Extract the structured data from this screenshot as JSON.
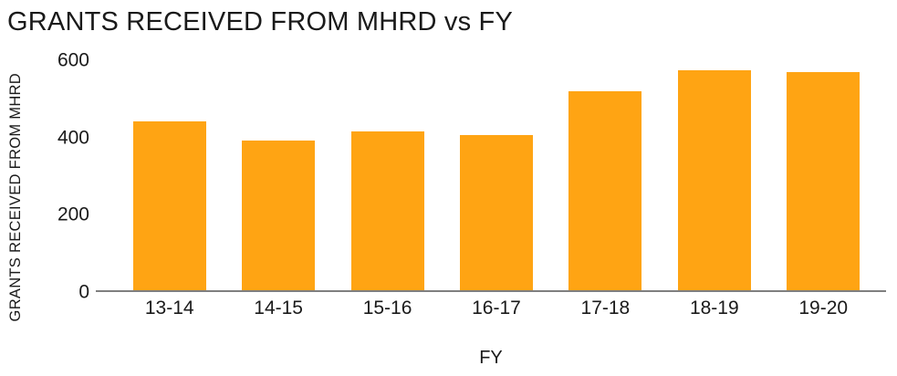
{
  "title": "GRANTS RECEIVED FROM MHRD vs FY",
  "colors": {
    "bar": "#FFA413",
    "axis_line": "#7f7f7f",
    "text": "#1a1a1a",
    "background": "#ffffff"
  },
  "chart_data": {
    "type": "bar",
    "title": "GRANTS RECEIVED FROM MHRD vs FY",
    "categories": [
      "13-14",
      "14-15",
      "15-16",
      "16-17",
      "17-18",
      "18-19",
      "19-20"
    ],
    "values": [
      440,
      390,
      415,
      405,
      520,
      575,
      570
    ],
    "xlabel": "FY",
    "ylabel": "GRANTS RECEIVED FROM MHRD",
    "ylim": [
      0,
      600
    ],
    "y_ticks": [
      0,
      200,
      400,
      600
    ],
    "grid": false,
    "legend": false,
    "bar_color": "#FFA413"
  }
}
